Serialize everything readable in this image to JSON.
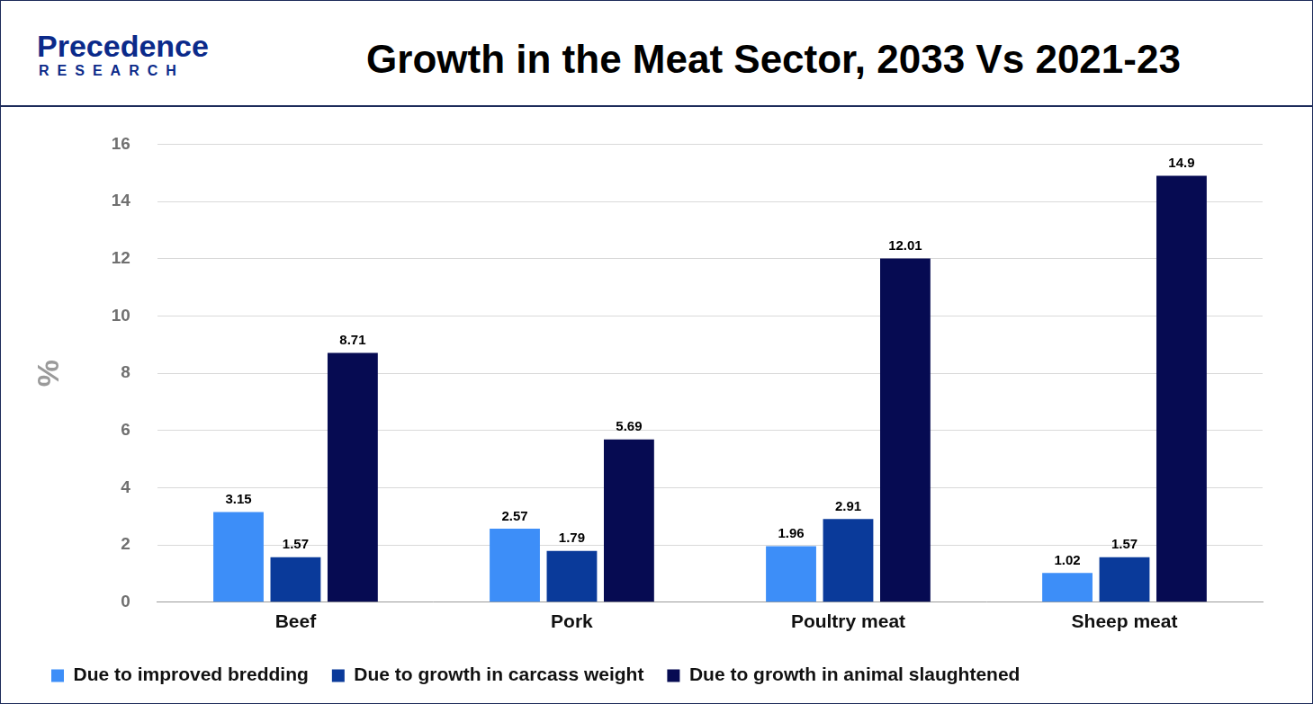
{
  "header": {
    "logo": "Precedence",
    "logo_subtitle": "RESEARCH"
  },
  "chart_data": {
    "type": "bar",
    "title": "Growth in the Meat Sector, 2033 Vs 2021-23",
    "y_label": "%",
    "categories": [
      "Beef",
      "Pork",
      "Poultry meat",
      "Sheep meat"
    ],
    "series": [
      {
        "name": "Due to improved bredding",
        "color": "#3d8ef8",
        "values": [
          3.15,
          2.57,
          1.96,
          1.02
        ]
      },
      {
        "name": "Due to growth in carcass weight",
        "color": "#0a3a9a",
        "values": [
          1.57,
          1.79,
          2.91,
          1.57
        ]
      },
      {
        "name": "Due to growth in animal slaughtened",
        "color": "#060b52",
        "values": [
          8.71,
          5.69,
          12.01,
          14.9
        ]
      }
    ],
    "ylim": [
      0,
      16
    ],
    "yticks": [
      0,
      2,
      4,
      6,
      8,
      10,
      12,
      14,
      16
    ],
    "grid": true,
    "legend": "bottom",
    "data_labels": true
  }
}
